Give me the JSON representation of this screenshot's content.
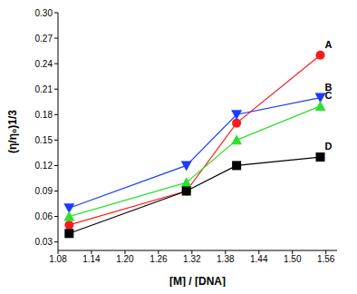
{
  "chart_data": {
    "type": "line",
    "x_label": "[M] / [DNA]",
    "y_label": "(η/η₀)1/3",
    "x": [
      1.1,
      1.31,
      1.4,
      1.55
    ],
    "series": [
      {
        "name": "A",
        "color": "#ff1a1a",
        "marker": "circle",
        "values": [
          0.05,
          0.09,
          0.17,
          0.25
        ]
      },
      {
        "name": "B",
        "color": "#1a3cff",
        "marker": "triangle-down",
        "values": [
          0.07,
          0.12,
          0.18,
          0.2
        ]
      },
      {
        "name": "C",
        "color": "#2ee02e",
        "marker": "triangle-up",
        "values": [
          0.06,
          0.1,
          0.15,
          0.19
        ]
      },
      {
        "name": "D",
        "color": "#000000",
        "marker": "square",
        "values": [
          0.04,
          0.09,
          0.12,
          0.13
        ]
      }
    ],
    "xlim": [
      1.08,
      1.58
    ],
    "xticks": [
      1.08,
      1.14,
      {
        "value": 1.2,
        "label": "1.20"
      },
      1.26,
      1.32,
      1.38,
      1.44,
      {
        "value": 1.5,
        "label": "1.50"
      },
      1.56
    ],
    "ylim": [
      0.02,
      0.3
    ],
    "yticks": [
      0.03,
      0.06,
      0.09,
      0.12,
      0.15,
      0.18,
      0.21,
      0.24,
      0.27,
      {
        "value": 0.3,
        "label": "0.30"
      }
    ],
    "grid": false
  }
}
